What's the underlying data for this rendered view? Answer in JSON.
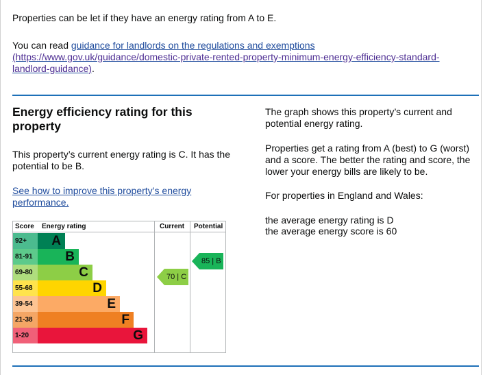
{
  "intro": {
    "let_text": "Properties can be let if they have an energy rating from A to E.",
    "guidance_prefix": "You can read ",
    "guidance_link": "guidance for landlords on the regulations and exemptions",
    "guidance_url": "(https://www.gov.uk/guidance/domestic-private-rented-property-minimum-energy-efficiency-standard-landlord-guidance)",
    "guidance_suffix": "."
  },
  "section": {
    "title": "Energy efficiency rating for this property",
    "current_text": "This property’s current energy rating is C. It has the potential to be B.",
    "improve_link": "See how to improve this property’s energy performance.",
    "graph_text": "The graph shows this property’s current and potential energy rating.",
    "scale_text": "Properties get a rating from A (best) to G (worst) and a score. The better the rating and score, the lower your energy bills are likely to be.",
    "region_text": "For properties in England and Wales:",
    "avg_rating": "the average energy rating is D",
    "avg_score": "the average energy score is 60"
  },
  "epc": {
    "headers": {
      "score": "Score",
      "rating": "Energy rating",
      "current": "Current",
      "potential": "Potential"
    },
    "bands": [
      {
        "score": "92+",
        "letter": "A",
        "color": "#008054",
        "score_bg": "#4cbb8f"
      },
      {
        "score": "81-91",
        "letter": "B",
        "color": "#19b459",
        "score_bg": "#5dca8b"
      },
      {
        "score": "69-80",
        "letter": "C",
        "color": "#8dce46",
        "score_bg": "#afdd7e"
      },
      {
        "score": "55-68",
        "letter": "D",
        "color": "#ffd500",
        "score_bg": "#ffe34d"
      },
      {
        "score": "39-54",
        "letter": "E",
        "color": "#fcaa65",
        "score_bg": "#fdc493"
      },
      {
        "score": "21-38",
        "letter": "F",
        "color": "#ef8023",
        "score_bg": "#f4a665"
      },
      {
        "score": "1-20",
        "letter": "G",
        "color": "#e9153b",
        "score_bg": "#f06078"
      }
    ],
    "current": {
      "value": 70,
      "band": "C",
      "label": "70 | C",
      "color": "#8dce46"
    },
    "potential": {
      "value": 85,
      "band": "B",
      "label": "85 | B",
      "color": "#19b459"
    }
  }
}
